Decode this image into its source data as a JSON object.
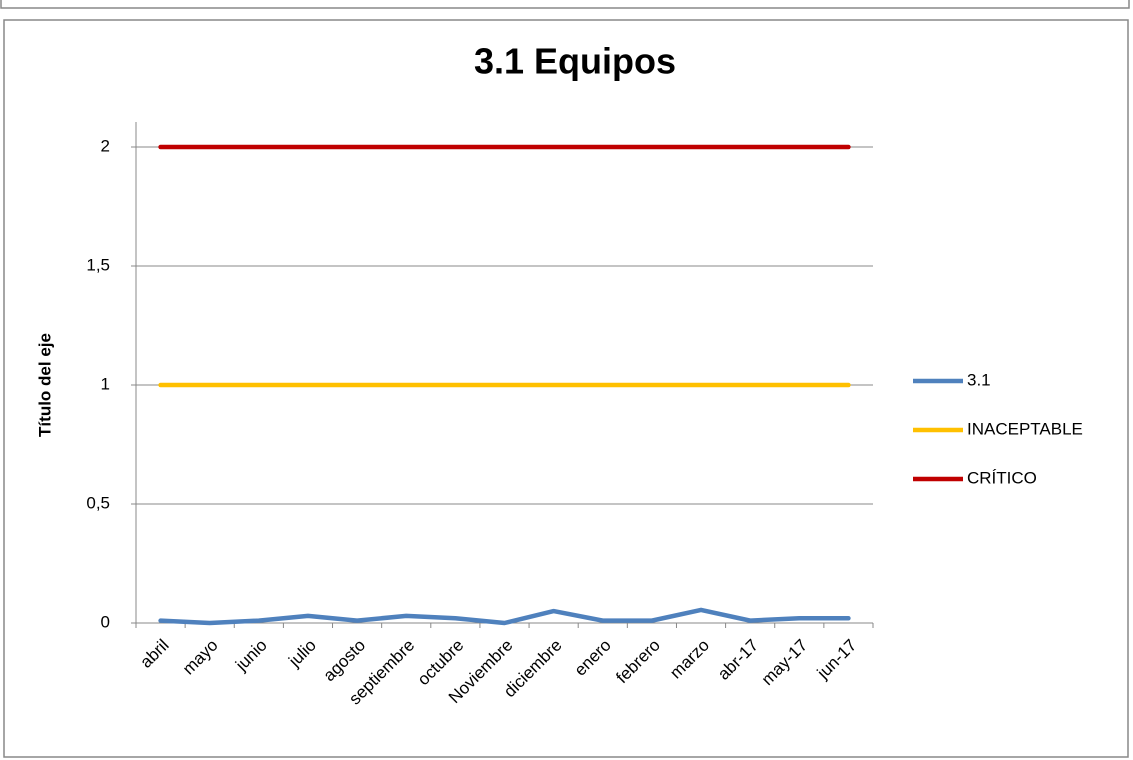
{
  "chart_data": {
    "type": "line",
    "title": "3.1 Equipos",
    "ylabel": "Título del eje",
    "categories": [
      "abril",
      "mayo",
      "junio",
      "julio",
      "agosto",
      "septiembre",
      "octubre",
      "Noviembre",
      "diciembre",
      "enero",
      "febrero",
      "marzo",
      "abr-17",
      "may-17",
      "jun-17"
    ],
    "series": [
      {
        "name": "3.1",
        "color": "#4f81bd",
        "values": [
          0.01,
          0,
          0.01,
          0.03,
          0.01,
          0.03,
          0.02,
          0,
          0.05,
          0.01,
          0.01,
          0.055,
          0.01,
          0.02,
          0.02
        ]
      },
      {
        "name": "INACEPTABLE",
        "color": "#ffc000",
        "values": [
          1,
          1,
          1,
          1,
          1,
          1,
          1,
          1,
          1,
          1,
          1,
          1,
          1,
          1,
          1
        ]
      },
      {
        "name": "CRÍTICO",
        "color": "#c00000",
        "values": [
          2,
          2,
          2,
          2,
          2,
          2,
          2,
          2,
          2,
          2,
          2,
          2,
          2,
          2,
          2
        ]
      }
    ],
    "ylim": [
      0,
      2
    ],
    "yticks": [
      0,
      {
        "value": 0.5,
        "label": "0,5"
      },
      1,
      {
        "value": 1.5,
        "label": "1,5"
      },
      2
    ],
    "grid": true,
    "legend": "right"
  }
}
